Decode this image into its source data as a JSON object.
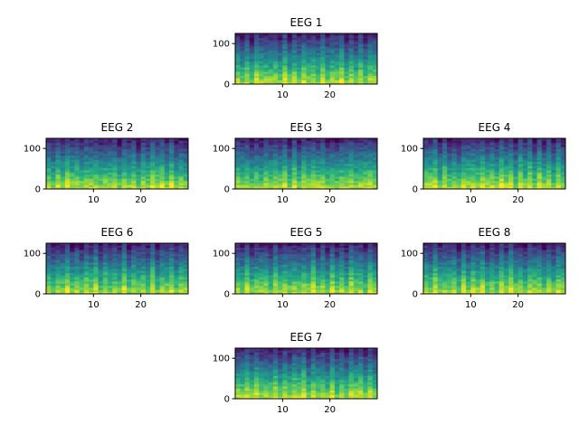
{
  "chart_data": [
    {
      "type": "heatmap",
      "title": "EEG 1",
      "xticks": [
        10,
        20
      ],
      "yticks": [
        0,
        100
      ],
      "xlim": [
        0,
        30
      ],
      "ylim": [
        0,
        125
      ],
      "colormap": "viridis",
      "seed": 11
    },
    {
      "type": "heatmap",
      "title": "EEG 2",
      "xticks": [
        10,
        20
      ],
      "yticks": [
        0,
        100
      ],
      "xlim": [
        0,
        30
      ],
      "ylim": [
        0,
        125
      ],
      "colormap": "viridis",
      "seed": 23
    },
    {
      "type": "heatmap",
      "title": "EEG 3",
      "xticks": [
        10,
        20
      ],
      "yticks": [
        0,
        100
      ],
      "xlim": [
        0,
        30
      ],
      "ylim": [
        0,
        125
      ],
      "colormap": "viridis",
      "seed": 37
    },
    {
      "type": "heatmap",
      "title": "EEG 4",
      "xticks": [
        10,
        20
      ],
      "yticks": [
        0,
        100
      ],
      "xlim": [
        0,
        30
      ],
      "ylim": [
        0,
        125
      ],
      "colormap": "viridis",
      "seed": 41
    },
    {
      "type": "heatmap",
      "title": "EEG 6",
      "xticks": [
        10,
        20
      ],
      "yticks": [
        0,
        100
      ],
      "xlim": [
        0,
        30
      ],
      "ylim": [
        0,
        125
      ],
      "colormap": "viridis",
      "seed": 53
    },
    {
      "type": "heatmap",
      "title": "EEG 5",
      "xticks": [
        10,
        20
      ],
      "yticks": [
        0,
        100
      ],
      "xlim": [
        0,
        30
      ],
      "ylim": [
        0,
        125
      ],
      "colormap": "viridis",
      "seed": 67
    },
    {
      "type": "heatmap",
      "title": "EEG 8",
      "xticks": [
        10,
        20
      ],
      "yticks": [
        0,
        100
      ],
      "xlim": [
        0,
        30
      ],
      "ylim": [
        0,
        125
      ],
      "colormap": "viridis",
      "seed": 79
    },
    {
      "type": "heatmap",
      "title": "EEG 7",
      "xticks": [
        10,
        20
      ],
      "yticks": [
        0,
        100
      ],
      "xlim": [
        0,
        30
      ],
      "ylim": [
        0,
        125
      ],
      "colormap": "viridis",
      "seed": 83
    }
  ]
}
